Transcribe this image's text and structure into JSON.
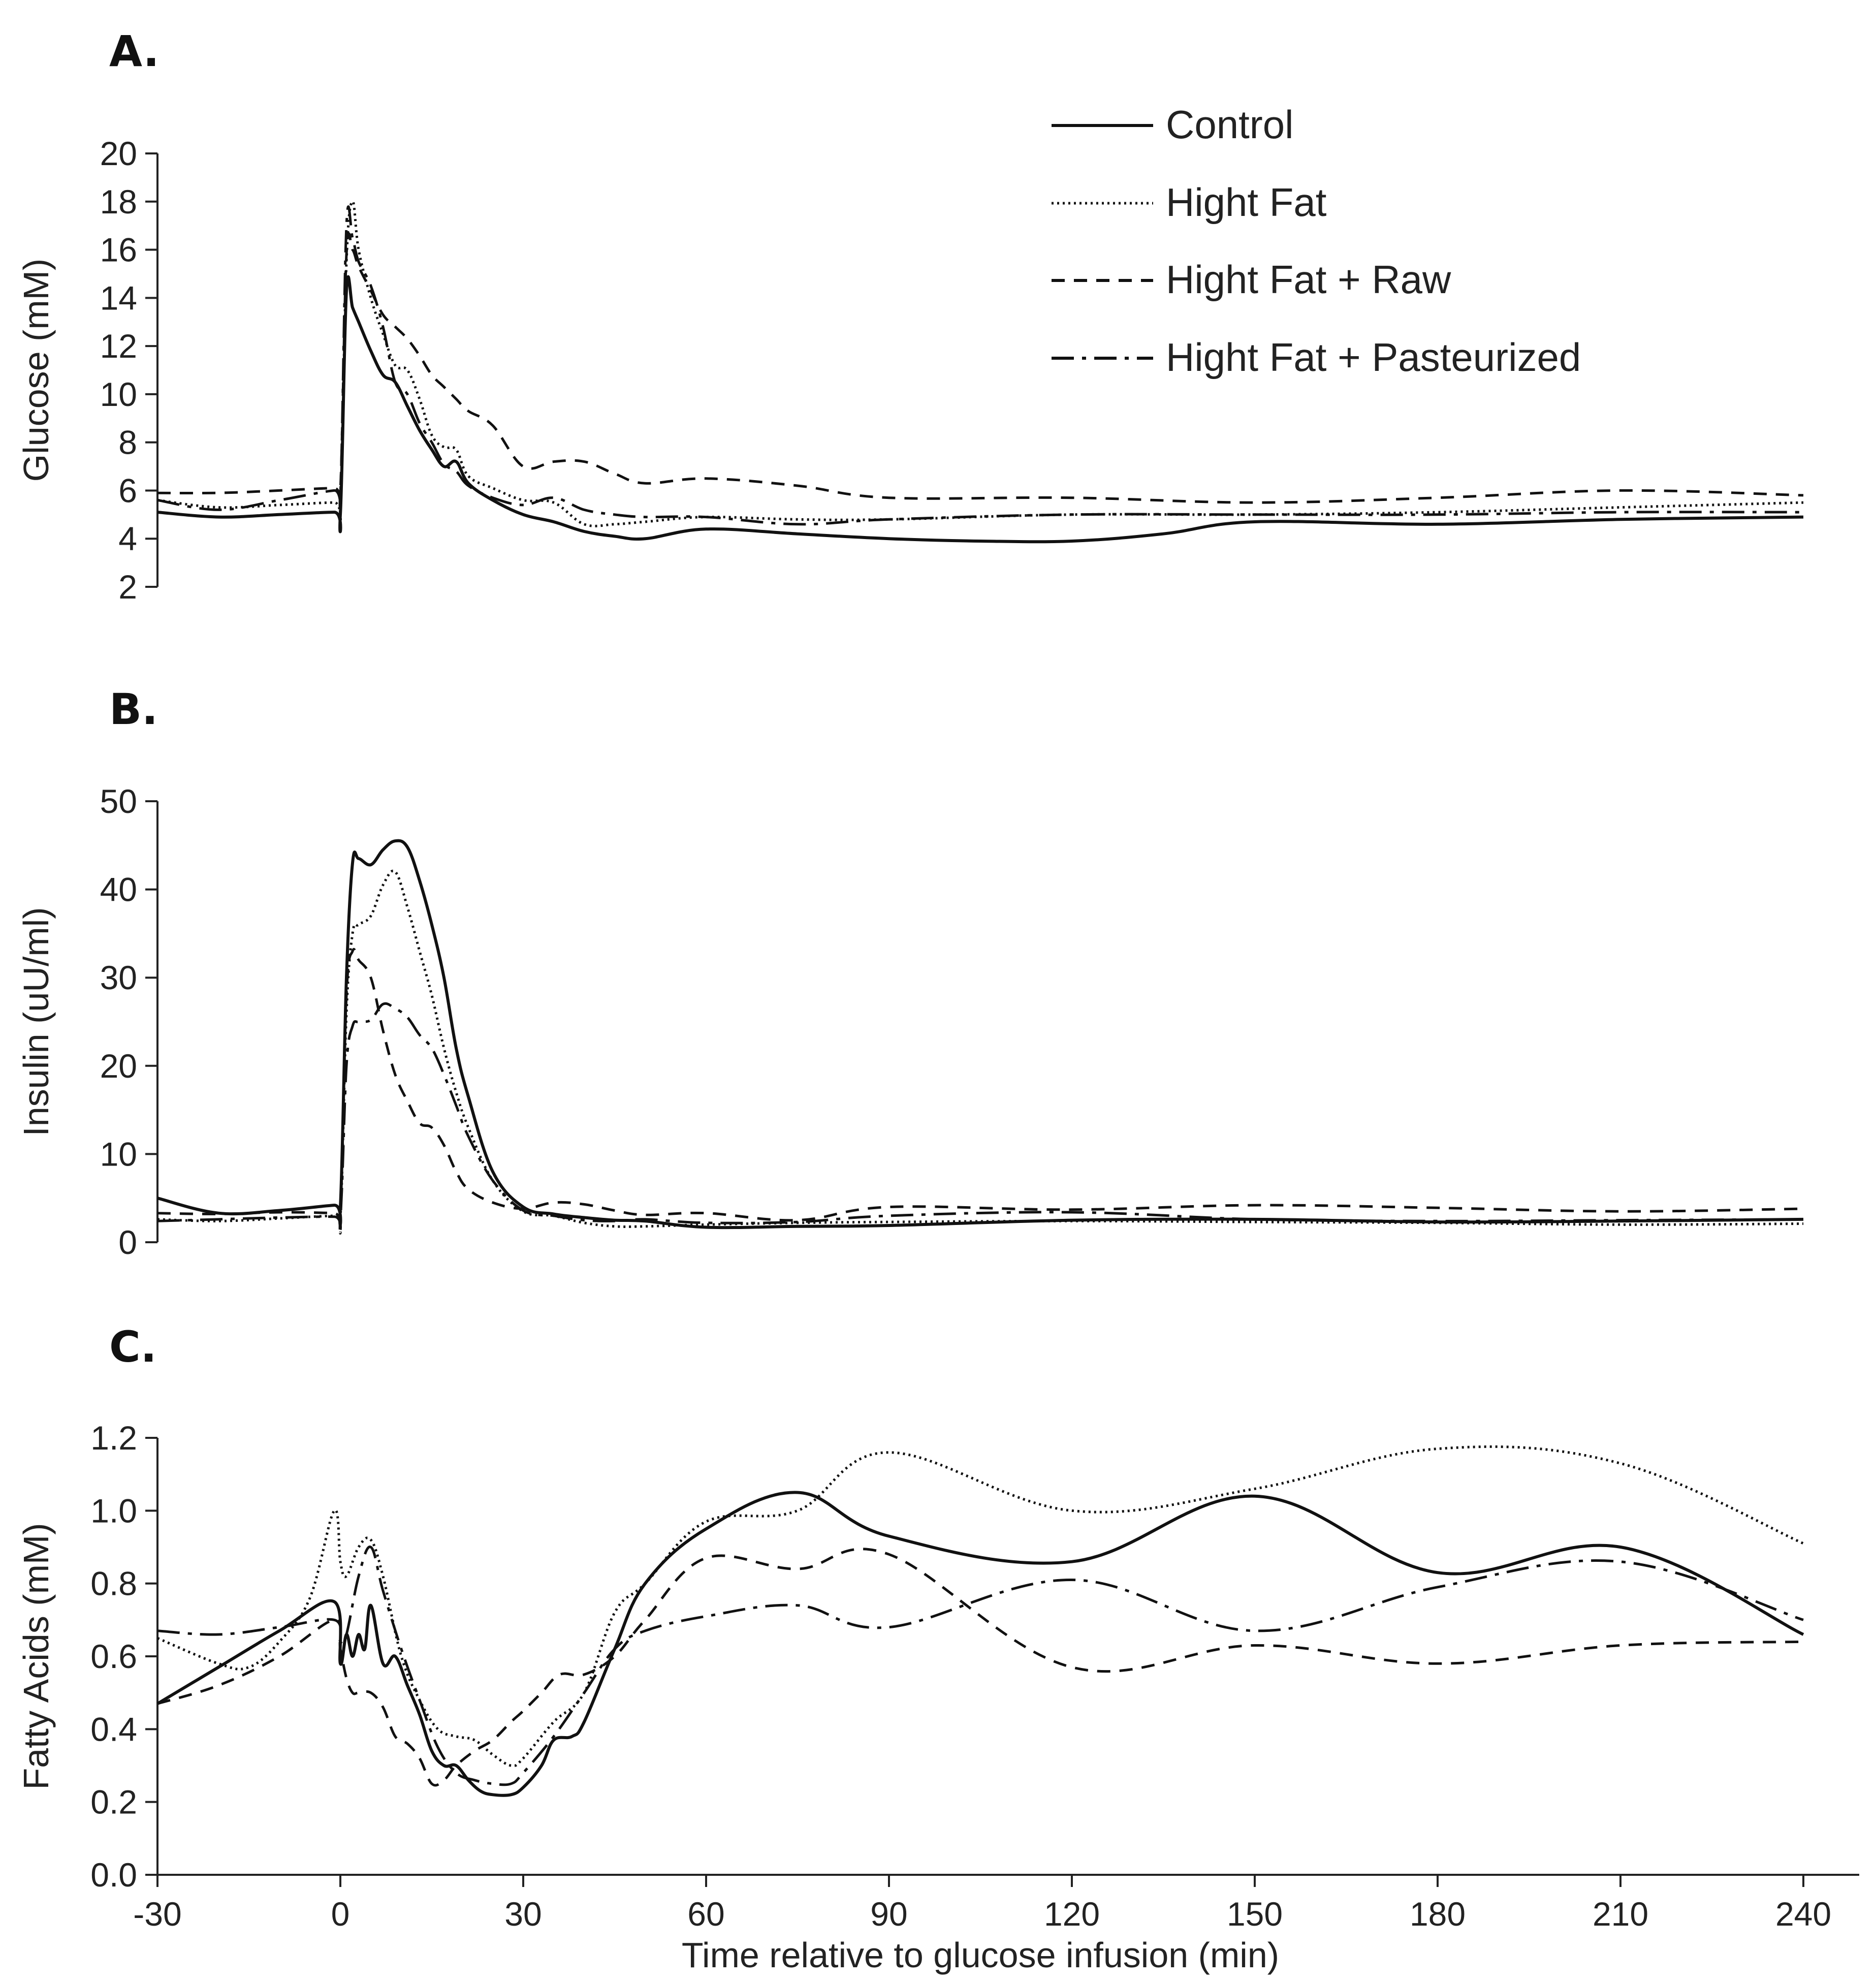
{
  "figure": {
    "panel_labels": [
      "A.",
      "B.",
      "C."
    ]
  },
  "legend": {
    "items": [
      {
        "label": "Control",
        "style": "solid"
      },
      {
        "label": "Hight Fat",
        "style": "dotted"
      },
      {
        "label": "Hight Fat + Raw",
        "style": "dashed"
      },
      {
        "label": "Hight Fat + Pasteurized",
        "style": "dashdot"
      }
    ]
  },
  "chart_data": [
    {
      "type": "line",
      "panel": "A.",
      "title": "",
      "xlabel": "",
      "ylabel": "Glucose (mM)",
      "xlim": [
        -30,
        240
      ],
      "ylim": [
        2,
        20
      ],
      "yticks": [
        2,
        4,
        6,
        8,
        10,
        12,
        14,
        16,
        18,
        20
      ],
      "series": [
        {
          "name": "Control",
          "style": "solid",
          "x": [
            -30,
            -20,
            -10,
            -1,
            0,
            1,
            2,
            3,
            5,
            7,
            9,
            11,
            13,
            15,
            17,
            19,
            21,
            25,
            30,
            35,
            40,
            45,
            50,
            60,
            75,
            90,
            105,
            120,
            135,
            150,
            180,
            210,
            240
          ],
          "y": [
            5.1,
            4.9,
            5.0,
            5.1,
            5.0,
            14.3,
            13.6,
            13.0,
            11.8,
            10.8,
            10.5,
            9.5,
            8.5,
            7.7,
            7.0,
            7.2,
            6.3,
            5.6,
            5.0,
            4.7,
            4.3,
            4.1,
            4.0,
            4.4,
            4.2,
            4.0,
            3.9,
            3.9,
            4.2,
            4.7,
            4.6,
            4.8,
            4.9
          ]
        },
        {
          "name": "Hight Fat",
          "style": "dotted",
          "x": [
            -30,
            -20,
            -10,
            -1,
            0,
            1,
            2,
            3,
            5,
            7,
            9,
            11,
            13,
            15,
            17,
            19,
            21,
            25,
            30,
            35,
            40,
            45,
            50,
            60,
            75,
            90,
            120,
            150,
            180,
            210,
            240
          ],
          "y": [
            5.6,
            5.3,
            5.4,
            5.5,
            5.4,
            15.5,
            18.0,
            16.0,
            14.0,
            12.5,
            11.2,
            11.0,
            9.8,
            8.3,
            7.8,
            7.7,
            6.6,
            6.1,
            5.6,
            5.5,
            4.6,
            4.6,
            4.7,
            4.9,
            4.8,
            4.8,
            5.0,
            5.0,
            5.1,
            5.3,
            5.5
          ]
        },
        {
          "name": "Hight Fat + Raw",
          "style": "dashed",
          "x": [
            -30,
            -20,
            -10,
            -1,
            0,
            1,
            2,
            3,
            5,
            7,
            9,
            11,
            13,
            15,
            17,
            19,
            21,
            25,
            30,
            35,
            40,
            45,
            50,
            60,
            75,
            90,
            120,
            150,
            180,
            210,
            240
          ],
          "y": [
            5.9,
            5.9,
            6.0,
            6.1,
            6.0,
            15.8,
            16.0,
            15.3,
            14.3,
            13.3,
            12.8,
            12.3,
            11.6,
            10.8,
            10.3,
            9.8,
            9.3,
            8.7,
            7.0,
            7.2,
            7.2,
            6.7,
            6.3,
            6.5,
            6.2,
            5.7,
            5.7,
            5.5,
            5.7,
            6.0,
            5.8
          ]
        },
        {
          "name": "Hight Fat + Pasteurized",
          "style": "dashdot",
          "x": [
            -30,
            -20,
            -10,
            -1,
            0,
            1,
            2,
            3,
            5,
            7,
            9,
            11,
            13,
            15,
            17,
            19,
            21,
            25,
            30,
            35,
            40,
            45,
            50,
            60,
            75,
            90,
            120,
            150,
            180,
            210,
            240
          ],
          "y": [
            5.6,
            5.2,
            5.6,
            6.0,
            5.8,
            17.0,
            16.5,
            15.5,
            14.5,
            12.8,
            10.5,
            10.0,
            8.8,
            8.0,
            7.1,
            6.8,
            6.2,
            5.7,
            5.4,
            5.7,
            5.2,
            5.0,
            4.9,
            4.9,
            4.6,
            4.8,
            5.0,
            5.0,
            5.0,
            5.1,
            5.1
          ]
        }
      ]
    },
    {
      "type": "line",
      "panel": "B.",
      "title": "",
      "xlabel": "",
      "ylabel": "Insulin (uU/ml)",
      "xlim": [
        -30,
        240
      ],
      "ylim": [
        0,
        50
      ],
      "yticks": [
        0,
        10,
        20,
        30,
        40,
        50
      ],
      "series": [
        {
          "name": "Control",
          "style": "solid",
          "x": [
            -30,
            -20,
            -10,
            -1,
            0,
            1,
            2,
            3,
            5,
            7,
            9,
            11,
            13,
            15,
            17,
            19,
            21,
            25,
            30,
            35,
            40,
            45,
            50,
            60,
            75,
            90,
            120,
            150,
            180,
            210,
            240
          ],
          "y": [
            5.0,
            3.3,
            3.6,
            4.2,
            4.0,
            30.0,
            43.0,
            43.5,
            42.8,
            44.5,
            45.5,
            44.8,
            41.0,
            36.0,
            30.0,
            22.0,
            16.5,
            8.0,
            4.0,
            3.2,
            2.8,
            2.5,
            2.4,
            1.7,
            1.8,
            1.9,
            2.5,
            2.6,
            2.3,
            2.4,
            2.6
          ]
        },
        {
          "name": "Hight Fat",
          "style": "dotted",
          "x": [
            -30,
            -20,
            -10,
            -1,
            0,
            1,
            2,
            3,
            5,
            7,
            9,
            11,
            13,
            15,
            17,
            19,
            21,
            25,
            30,
            35,
            40,
            45,
            50,
            60,
            75,
            90,
            120,
            150,
            180,
            210,
            240
          ],
          "y": [
            2.6,
            2.4,
            2.7,
            3.0,
            2.8,
            26.0,
            35.0,
            36.0,
            37.0,
            40.5,
            42.0,
            38.0,
            33.0,
            28.0,
            22.0,
            17.0,
            13.0,
            7.0,
            3.5,
            3.0,
            2.2,
            1.8,
            1.8,
            2.0,
            2.2,
            2.3,
            2.4,
            2.3,
            2.2,
            2.0,
            2.1
          ]
        },
        {
          "name": "Hight Fat + Raw",
          "style": "dashed",
          "x": [
            -30,
            -20,
            -10,
            -1,
            0,
            1,
            2,
            3,
            5,
            7,
            9,
            11,
            13,
            15,
            17,
            19,
            21,
            25,
            30,
            35,
            40,
            45,
            50,
            60,
            75,
            90,
            120,
            150,
            180,
            210,
            240
          ],
          "y": [
            3.3,
            3.2,
            3.4,
            3.3,
            3.2,
            28.0,
            33.0,
            32.0,
            30.0,
            24.0,
            19.0,
            16.0,
            13.5,
            13.0,
            11.0,
            8.0,
            6.0,
            4.5,
            3.8,
            4.5,
            4.3,
            3.6,
            3.1,
            3.3,
            2.5,
            4.0,
            3.7,
            4.2,
            3.9,
            3.5,
            3.8
          ]
        },
        {
          "name": "Hight Fat + Pasteurized",
          "style": "dashdot",
          "x": [
            -30,
            -20,
            -10,
            -1,
            0,
            1,
            2,
            3,
            5,
            7,
            9,
            11,
            13,
            15,
            17,
            19,
            21,
            25,
            30,
            35,
            40,
            45,
            50,
            60,
            75,
            90,
            120,
            150,
            180,
            210,
            240
          ],
          "y": [
            2.4,
            2.6,
            2.8,
            2.9,
            2.7,
            20.0,
            24.5,
            25.0,
            25.2,
            27.0,
            26.5,
            25.5,
            23.5,
            22.0,
            19.0,
            15.5,
            12.0,
            7.0,
            3.6,
            3.0,
            2.5,
            2.4,
            2.6,
            2.2,
            2.3,
            3.0,
            3.4,
            2.6,
            2.4,
            2.5,
            2.6
          ]
        }
      ]
    },
    {
      "type": "line",
      "panel": "C.",
      "title": "",
      "xlabel": "Time relative to glucose infusion (min)",
      "ylabel": "Fatty Acids (mM)",
      "xlim": [
        -30,
        240
      ],
      "ylim": [
        0.0,
        1.2
      ],
      "yticks": [
        0.0,
        0.2,
        0.4,
        0.6,
        0.8,
        1.0,
        1.2
      ],
      "xticks": [
        -30,
        0,
        30,
        60,
        90,
        120,
        150,
        180,
        210,
        240
      ],
      "series": [
        {
          "name": "Control",
          "style": "solid",
          "x": [
            -30,
            -20,
            -10,
            -1,
            0,
            1,
            2,
            3,
            4,
            5,
            7,
            9,
            11,
            13,
            15,
            17,
            19,
            21,
            23,
            25,
            28,
            30,
            33,
            35,
            38,
            40,
            45,
            50,
            60,
            75,
            90,
            120,
            150,
            180,
            210,
            240
          ],
          "y": [
            0.47,
            0.57,
            0.67,
            0.75,
            0.58,
            0.66,
            0.6,
            0.66,
            0.62,
            0.74,
            0.58,
            0.6,
            0.52,
            0.44,
            0.34,
            0.3,
            0.3,
            0.26,
            0.23,
            0.22,
            0.22,
            0.24,
            0.3,
            0.37,
            0.38,
            0.42,
            0.62,
            0.8,
            0.95,
            1.05,
            0.93,
            0.86,
            1.04,
            0.83,
            0.9,
            0.66
          ]
        },
        {
          "name": "Hight Fat",
          "style": "dotted",
          "x": [
            -30,
            -20,
            -15,
            -10,
            -5,
            -1,
            0,
            1,
            3,
            5,
            7,
            10,
            13,
            16,
            19,
            22,
            25,
            28,
            30,
            35,
            40,
            45,
            50,
            60,
            75,
            90,
            120,
            150,
            180,
            210,
            240
          ],
          "y": [
            0.65,
            0.58,
            0.57,
            0.64,
            0.76,
            1.0,
            0.86,
            0.82,
            0.9,
            0.92,
            0.82,
            0.6,
            0.48,
            0.4,
            0.38,
            0.37,
            0.33,
            0.3,
            0.32,
            0.42,
            0.5,
            0.72,
            0.8,
            0.97,
            1.0,
            1.16,
            1.0,
            1.06,
            1.17,
            1.13,
            0.91
          ]
        },
        {
          "name": "Hight Fat + Raw",
          "style": "dashed",
          "x": [
            -30,
            -20,
            -10,
            -1,
            0,
            1,
            2,
            3,
            5,
            7,
            9,
            11,
            13,
            15,
            17,
            19,
            22,
            25,
            28,
            30,
            33,
            36,
            40,
            45,
            50,
            60,
            75,
            90,
            120,
            150,
            180,
            210,
            240
          ],
          "y": [
            0.47,
            0.52,
            0.6,
            0.7,
            0.62,
            0.54,
            0.5,
            0.5,
            0.5,
            0.46,
            0.38,
            0.36,
            0.32,
            0.25,
            0.26,
            0.3,
            0.34,
            0.37,
            0.42,
            0.45,
            0.5,
            0.55,
            0.55,
            0.6,
            0.7,
            0.87,
            0.84,
            0.88,
            0.57,
            0.63,
            0.58,
            0.63,
            0.64
          ]
        },
        {
          "name": "Hight Fat + Pasteurized",
          "style": "dashdot",
          "x": [
            -30,
            -20,
            -10,
            -1,
            0,
            1,
            3,
            5,
            7,
            10,
            13,
            16,
            19,
            22,
            25,
            28,
            30,
            35,
            40,
            45,
            50,
            60,
            75,
            90,
            120,
            150,
            180,
            210,
            240
          ],
          "y": [
            0.67,
            0.66,
            0.68,
            0.7,
            0.64,
            0.66,
            0.82,
            0.9,
            0.78,
            0.62,
            0.48,
            0.35,
            0.28,
            0.26,
            0.25,
            0.25,
            0.28,
            0.38,
            0.5,
            0.62,
            0.67,
            0.71,
            0.74,
            0.68,
            0.81,
            0.67,
            0.79,
            0.86,
            0.7
          ]
        }
      ]
    }
  ]
}
